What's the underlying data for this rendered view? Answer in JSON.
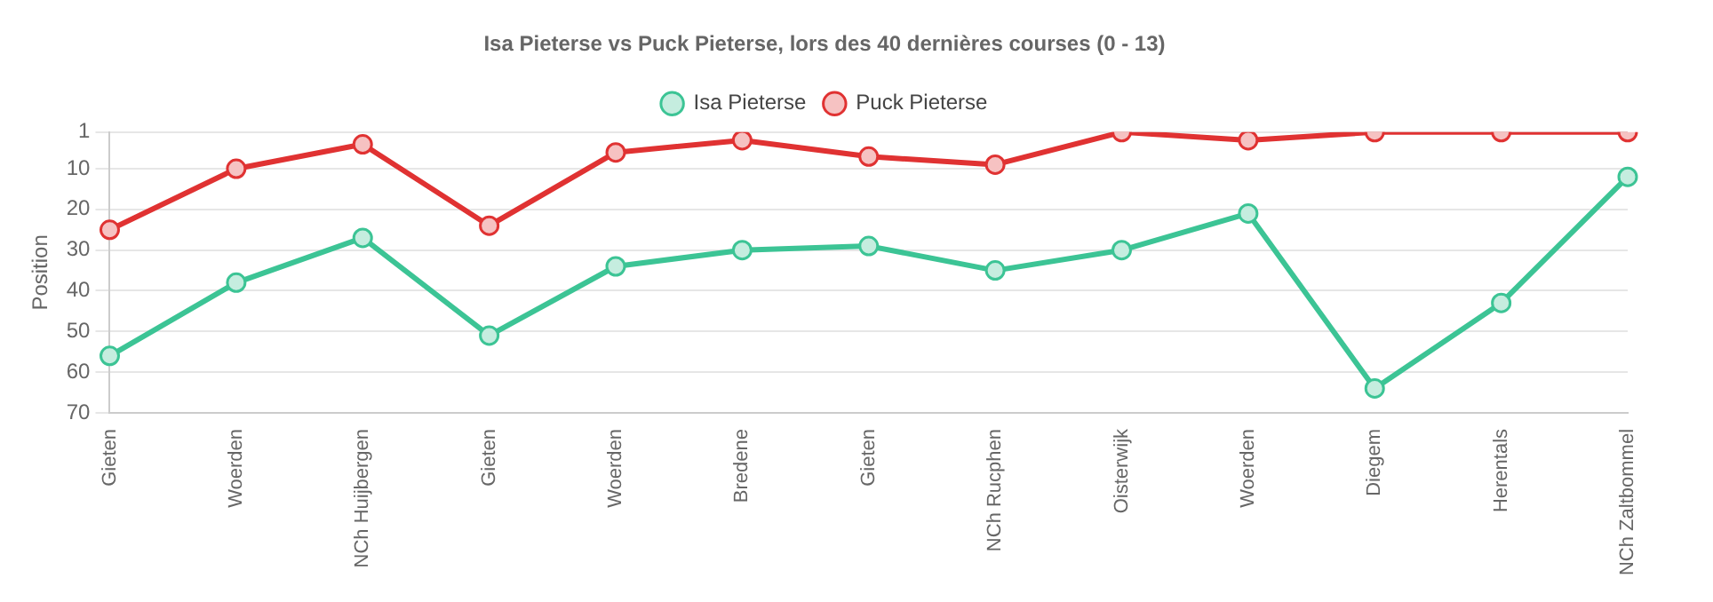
{
  "chart_data": {
    "type": "line",
    "title": "Isa Pieterse vs Puck Pieterse, lors des 40 dernières courses (0 - 13)",
    "ylabel": "Position",
    "categories": [
      "Gieten",
      "Woerden",
      "NCh Huijbergen",
      "Gieten",
      "Woerden",
      "Bredene",
      "Gieten",
      "NCh Rucphen",
      "Oisterwijk",
      "Woerden",
      "Diegem",
      "Herentals",
      "NCh Zaltbommel"
    ],
    "series": [
      {
        "name": "Isa Pieterse",
        "color": "#3cc495",
        "values": [
          56,
          38,
          27,
          51,
          34,
          30,
          29,
          35,
          30,
          21,
          64,
          43,
          12
        ]
      },
      {
        "name": "Puck Pieterse",
        "color": "#e03232",
        "values": [
          25,
          10,
          4,
          24,
          6,
          3,
          7,
          9,
          1,
          3,
          1,
          1,
          1
        ]
      }
    ],
    "ylim": [
      70,
      1
    ],
    "yticks": [
      1,
      10,
      20,
      30,
      40,
      50,
      60,
      70
    ],
    "grid": "y",
    "legend": "top",
    "marker": "circle",
    "line_style": "solid"
  }
}
